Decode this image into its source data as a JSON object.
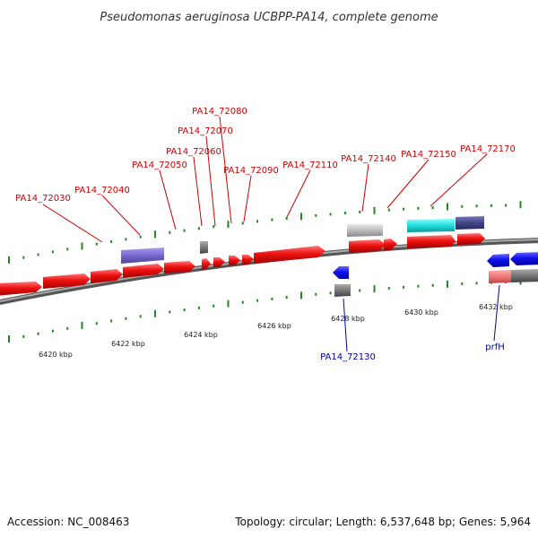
{
  "header": {
    "title": "Pseudomonas aeruginosa UCBPP-PA14, complete genome"
  },
  "footer": {
    "accession": "Accession: NC_008463",
    "summary": "Topology: circular; Length: 6,537,648 bp; Genes: 5,964"
  },
  "axis": {
    "ticks": [
      "6420 kbp",
      "6422 kbp",
      "6424 kbp",
      "6426 kbp",
      "6428 kbp",
      "6430 kbp",
      "6432 kbp"
    ]
  },
  "genes": {
    "forward_labels": [
      "PA14_72030",
      "PA14_72040",
      "PA14_72050",
      "PA14_72060",
      "PA14_72070",
      "PA14_72080",
      "PA14_72090",
      "PA14_72110",
      "PA14_72140",
      "PA14_72150",
      "PA14_72170"
    ],
    "reverse_labels": [
      "PA14_72130",
      "prfH"
    ]
  },
  "colors": {
    "gene_forward": "#ee1111",
    "gene_reverse": "#1111ee",
    "feature_violet": "#7766cc",
    "feature_cyan": "#22dddd",
    "feature_navy": "#444488",
    "feature_grey": "#777777",
    "feature_light_grey": "#bbbbbb",
    "feature_pink": "#ee7777",
    "axis_ticks": "#228822",
    "backbone": "#888888",
    "label_forward": "#cc0000",
    "label_reverse": "#000099"
  }
}
